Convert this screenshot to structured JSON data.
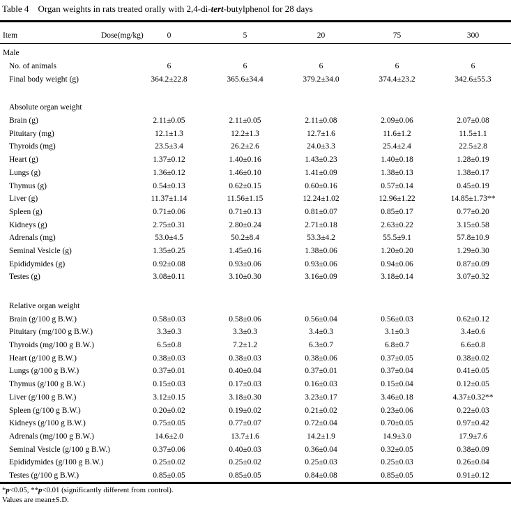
{
  "title": {
    "label": "Table 4",
    "text_before_italic": "Organ weights in rats treated orally with 2,4-di-",
    "italic_word": "tert",
    "text_after_italic": "-butylphenol for 28 days"
  },
  "header": {
    "item": "Item",
    "dose": "Dose(mg/kg)",
    "doses": [
      "0",
      "5",
      "20",
      "75",
      "300"
    ]
  },
  "sections": [
    {
      "heading": "Male",
      "indent": false,
      "rows": [
        {
          "label": "No. of animals",
          "values": [
            "6",
            "6",
            "6",
            "6",
            "6"
          ]
        },
        {
          "label": "Final body weight (g)",
          "values": [
            "364.2±22.8",
            "365.6±34.4",
            "379.2±34.0",
            "374.4±23.2",
            "342.6±55.3"
          ]
        }
      ]
    },
    {
      "heading": "Absolute organ weight",
      "indent": true,
      "rows": [
        {
          "label": "Brain (g)",
          "values": [
            "2.11±0.05",
            "2.11±0.05",
            "2.11±0.08",
            "2.09±0.06",
            "2.07±0.08"
          ]
        },
        {
          "label": "Pituitary (mg)",
          "values": [
            "12.1±1.3",
            "12.2±1.3",
            "12.7±1.6",
            "11.6±1.2",
            "11.5±1.1"
          ]
        },
        {
          "label": "Thyroids (mg)",
          "values": [
            "23.5±3.4",
            "26.2±2.6",
            "24.0±3.3",
            "25.4±2.4",
            "22.5±2.8"
          ]
        },
        {
          "label": "Heart (g)",
          "values": [
            "1.37±0.12",
            "1.40±0.16",
            "1.43±0.23",
            "1.40±0.18",
            "1.28±0.19"
          ]
        },
        {
          "label": "Lungs (g)",
          "values": [
            "1.36±0.12",
            "1.46±0.10",
            "1.41±0.09",
            "1.38±0.13",
            "1.38±0.17"
          ]
        },
        {
          "label": "Thymus (g)",
          "values": [
            "0.54±0.13",
            "0.62±0.15",
            "0.60±0.16",
            "0.57±0.14",
            "0.45±0.19"
          ]
        },
        {
          "label": "Liver (g)",
          "values": [
            "11.37±1.14",
            "11.56±1.15",
            "12.24±1.02",
            "12.96±1.22",
            "14.85±1.73**"
          ]
        },
        {
          "label": "Spleen (g)",
          "values": [
            "0.71±0.06",
            "0.71±0.13",
            "0.81±0.07",
            "0.85±0.17",
            "0.77±0.20"
          ]
        },
        {
          "label": "Kidneys (g)",
          "values": [
            "2.75±0.31",
            "2.80±0.24",
            "2.71±0.18",
            "2.63±0.22",
            "3.15±0.58"
          ]
        },
        {
          "label": "Adrenals (mg)",
          "values": [
            "53.0±4.5",
            "50.2±8.4",
            "53.3±4.2",
            "55.5±9.1",
            "57.8±10.9"
          ]
        },
        {
          "label": "Seminal Vesicle (g)",
          "values": [
            "1.35±0.25",
            "1.45±0.16",
            "1.38±0.06",
            "1.20±0.20",
            "1.29±0.30"
          ]
        },
        {
          "label": "Epididymides (g)",
          "values": [
            "0.92±0.08",
            "0.93±0.06",
            "0.93±0.06",
            "0.94±0.06",
            "0.87±0.09"
          ]
        },
        {
          "label": "Testes (g)",
          "values": [
            "3.08±0.11",
            "3.10±0.30",
            "3.16±0.09",
            "3.18±0.14",
            "3.07±0.32"
          ]
        }
      ]
    },
    {
      "heading": "Relative organ weight",
      "indent": true,
      "rows": [
        {
          "label": "Brain (g/100 g B.W.)",
          "values": [
            "0.58±0.03",
            "0.58±0.06",
            "0.56±0.04",
            "0.56±0.03",
            "0.62±0.12"
          ]
        },
        {
          "label": "Pituitary (mg/100 g B.W.)",
          "values": [
            "3.3±0.3",
            "3.3±0.3",
            "3.4±0.3",
            "3.1±0.3",
            "3.4±0.6"
          ]
        },
        {
          "label": "Thyroids (mg/100 g B.W.)",
          "values": [
            "6.5±0.8",
            "7.2±1.2",
            "6.3±0.7",
            "6.8±0.7",
            "6.6±0.8"
          ]
        },
        {
          "label": "Heart (g/100 g B.W.)",
          "values": [
            "0.38±0.03",
            "0.38±0.03",
            "0.38±0.06",
            "0.37±0.05",
            "0.38±0.02"
          ]
        },
        {
          "label": "Lungs (g/100 g B.W.)",
          "values": [
            "0.37±0.01",
            "0.40±0.04",
            "0.37±0.01",
            "0.37±0.04",
            "0.41±0.05"
          ]
        },
        {
          "label": "Thymus (g/100 g B.W.)",
          "values": [
            "0.15±0.03",
            "0.17±0.03",
            "0.16±0.03",
            "0.15±0.04",
            "0.12±0.05"
          ]
        },
        {
          "label": "Liver (g/100 g B.W.)",
          "values": [
            "3.12±0.15",
            "3.18±0.30",
            "3.23±0.17",
            "3.46±0.18",
            "4.37±0.32**"
          ]
        },
        {
          "label": "Spleen (g/100 g B.W.)",
          "values": [
            "0.20±0.02",
            "0.19±0.02",
            "0.21±0.02",
            "0.23±0.06",
            "0.22±0.03"
          ]
        },
        {
          "label": "Kidneys (g/100 g B.W.)",
          "values": [
            "0.75±0.05",
            "0.77±0.07",
            "0.72±0.04",
            "0.70±0.05",
            "0.97±0.42"
          ]
        },
        {
          "label": "Adrenals (mg/100 g B.W.)",
          "values": [
            "14.6±2.0",
            "13.7±1.6",
            "14.2±1.9",
            "14.9±3.0",
            "17.9±7.6"
          ]
        },
        {
          "label": "Seminal Vesicle (g/100 g B.W.)",
          "values": [
            "0.37±0.06",
            "0.40±0.03",
            "0.36±0.04",
            "0.32±0.05",
            "0.38±0.09"
          ]
        },
        {
          "label": "Epididymides (g/100 g B.W.)",
          "values": [
            "0.25±0.02",
            "0.25±0.02",
            "0.25±0.03",
            "0.25±0.03",
            "0.26±0.04"
          ]
        },
        {
          "label": "Testes (g/100 g B.W.)",
          "values": [
            "0.85±0.05",
            "0.85±0.05",
            "0.84±0.08",
            "0.85±0.05",
            "0.91±0.12"
          ]
        }
      ]
    }
  ],
  "footnotes": {
    "significance": {
      "parts": [
        {
          "text": "*",
          "italic": false
        },
        {
          "text": "p",
          "italic": true
        },
        {
          "text": "<0.05, **",
          "italic": false
        },
        {
          "text": "p",
          "italic": true
        },
        {
          "text": "<0.01 (significantly different from control).",
          "italic": false
        }
      ]
    },
    "values_note": "Values are mean±S.D."
  }
}
